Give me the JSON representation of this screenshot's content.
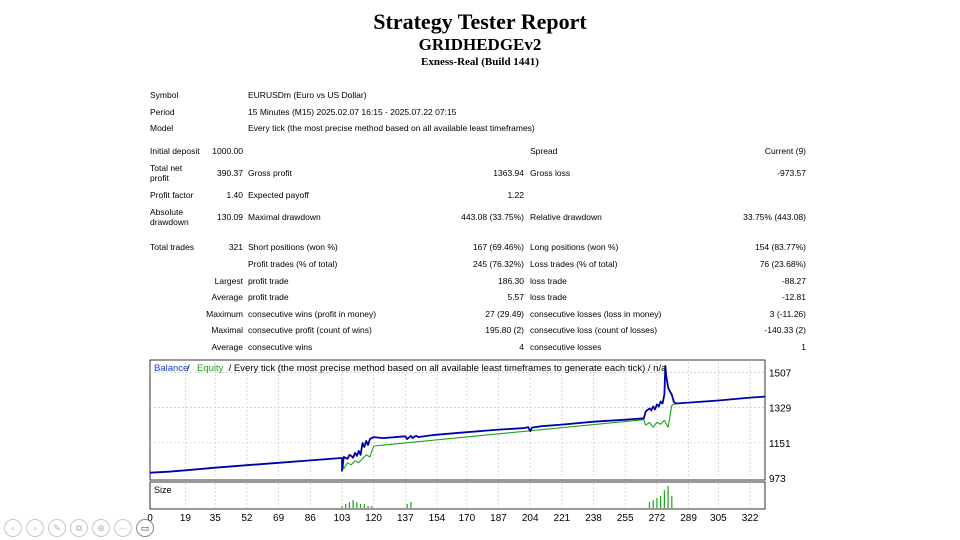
{
  "report": {
    "title": "Strategy Tester Report",
    "ea_name": "GRIDHEDGEv2",
    "server": "Exness-Real (Build 1441)"
  },
  "settings": {
    "symbol_label": "Symbol",
    "symbol_value": "EURUSDm (Euro vs US Dollar)",
    "period_label": "Period",
    "period_value": "15 Minutes (M15) 2025.02.07 16:15 - 2025.07.22 07:15",
    "model_label": "Model",
    "model_value": "Every tick (the most precise method based on all available least timeframes)"
  },
  "stats": {
    "initial_deposit_label": "Initial deposit",
    "initial_deposit": "1000.00",
    "spread_label": "Spread",
    "spread_value": "Current (9)",
    "total_net_profit_label_1": "Total net",
    "total_net_profit_label_2": "profit",
    "total_net_profit": "390.37",
    "gross_profit_label": "Gross profit",
    "gross_profit": "1363.94",
    "gross_loss_label": "Gross loss",
    "gross_loss": "-973.57",
    "profit_factor_label": "Profit factor",
    "profit_factor": "1.40",
    "expected_payoff_label": "Expected payoff",
    "expected_payoff": "1.22",
    "absolute_drawdown_label_1": "Absolute",
    "absolute_drawdown_label_2": "drawdown",
    "absolute_drawdown": "130.09",
    "maximal_drawdown_label": "Maximal drawdown",
    "maximal_drawdown": "443.08 (33.75%)",
    "relative_drawdown_label": "Relative drawdown",
    "relative_drawdown": "33.75% (443.08)",
    "total_trades_label": "Total trades",
    "total_trades": "321",
    "short_positions_label": "Short positions (won %)",
    "short_positions": "167 (69.46%)",
    "long_positions_label": "Long positions (won %)",
    "long_positions": "154 (83.77%)",
    "profit_trades_label": "Profit trades (% of total)",
    "profit_trades": "245 (76.32%)",
    "loss_trades_label": "Loss trades (% of total)",
    "loss_trades": "76 (23.68%)",
    "largest_label": "Largest",
    "largest_profit_label": "profit trade",
    "largest_profit": "186.30",
    "largest_loss_label": "loss trade",
    "largest_loss": "-88.27",
    "average_label": "Average",
    "average_profit_label": "profit trade",
    "average_profit": "5.57",
    "average_loss_label": "loss trade",
    "average_loss": "-12.81",
    "maximum_label": "Maximum",
    "max_cons_wins_label": "consecutive wins (profit in money)",
    "max_cons_wins": "27 (29.49)",
    "max_cons_losses_label": "consecutive losses (loss in money)",
    "max_cons_losses": "3 (-11.26)",
    "maximal_label": "Maximal",
    "maximal_cons_profit_label": "consecutive profit (count of wins)",
    "maximal_cons_profit": "195.80 (2)",
    "maximal_cons_loss_label": "consecutive loss (count of losses)",
    "maximal_cons_loss": "-140.33 (2)",
    "average2_label": "Average",
    "avg_cons_wins_label": "consecutive wins",
    "avg_cons_wins": "4",
    "avg_cons_losses_label": "consecutive losses",
    "avg_cons_losses": "1"
  },
  "chart_data": {
    "type": "line",
    "legend": {
      "balance": "Balance",
      "sep1": " / ",
      "equity": "Equity",
      "rest": " / Every tick (the most precise method based on all available least timeframes to generate each tick) / n/a"
    },
    "xlim": [
      0,
      330
    ],
    "ylim": [
      973,
      1560
    ],
    "y_ticks": [
      "1507",
      "1329",
      "1151",
      "973"
    ],
    "x_ticks": [
      "0",
      "19",
      "35",
      "52",
      "69",
      "86",
      "103",
      "120",
      "137",
      "154",
      "170",
      "187",
      "204",
      "221",
      "238",
      "255",
      "272",
      "289",
      "305",
      "322"
    ],
    "series": [
      {
        "name": "Balance",
        "color": "#0000a8",
        "x": [
          0,
          10,
          19,
          35,
          52,
          69,
          86,
          100,
          103,
          103,
          104,
          106,
          107,
          108,
          109,
          110,
          111,
          112,
          113,
          114,
          115,
          116,
          117,
          118,
          120,
          125,
          137,
          138,
          139,
          140,
          141,
          142,
          143,
          144,
          150,
          154,
          170,
          187,
          200,
          203,
          204,
          205,
          210,
          221,
          238,
          255,
          265,
          266,
          268,
          269,
          270,
          271,
          272,
          273,
          274,
          275,
          276,
          276.5,
          277,
          278,
          279,
          280,
          281,
          282,
          290,
          305,
          322,
          330
        ],
        "y": [
          1000,
          1005,
          1012,
          1025,
          1038,
          1050,
          1062,
          1072,
          1074,
          1010,
          1080,
          1070,
          1090,
          1085,
          1075,
          1100,
          1085,
          1110,
          1090,
          1150,
          1130,
          1160,
          1140,
          1170,
          1180,
          1175,
          1184,
          1170,
          1178,
          1186,
          1175,
          1183,
          1186,
          1180,
          1188,
          1192,
          1205,
          1218,
          1225,
          1230,
          1210,
          1228,
          1235,
          1243,
          1258,
          1268,
          1275,
          1310,
          1325,
          1315,
          1335,
          1320,
          1345,
          1335,
          1360,
          1350,
          1395,
          1540,
          1490,
          1430,
          1410,
          1395,
          1360,
          1350,
          1355,
          1365,
          1380,
          1385
        ]
      },
      {
        "name": "Equity",
        "color": "#1aa41a",
        "x": [
          103,
          104,
          106,
          108,
          110,
          112,
          114,
          116,
          118,
          120,
          265,
          266,
          268,
          270,
          272,
          274,
          276,
          278,
          280,
          282
        ],
        "y": [
          1074,
          1020,
          1050,
          1040,
          1060,
          1050,
          1070,
          1090,
          1080,
          1135,
          1268,
          1240,
          1255,
          1230,
          1255,
          1245,
          1265,
          1230,
          1340,
          1350
        ]
      }
    ],
    "size_panel": {
      "label": "Size",
      "x": [
        103,
        105,
        107,
        109,
        111,
        113,
        115,
        117,
        119,
        138,
        140,
        268,
        270,
        272,
        274,
        276,
        278,
        280
      ],
      "values": [
        1,
        2,
        3,
        4,
        3,
        2,
        2,
        1,
        1,
        2,
        3,
        3,
        4,
        5,
        6,
        9,
        11,
        6
      ]
    }
  },
  "nav": {
    "prev": "‹",
    "next": "›",
    "edit": "✎",
    "copy": "⧉",
    "zoom": "⊕",
    "more": "⋯",
    "camera": "▭"
  }
}
